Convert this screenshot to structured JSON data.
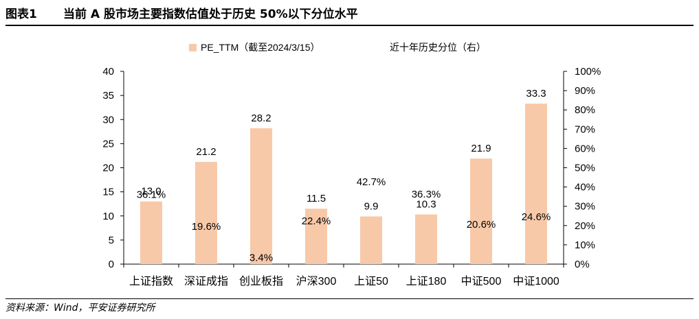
{
  "figure": {
    "label": "图表1",
    "title": "当前 A 股市场主要指数估值处于历史 50%以下分位水平",
    "source": "资料来源：Wind，平安证券研究所"
  },
  "colors": {
    "bar": "#F8C9A8",
    "axis": "#000000"
  },
  "chart_data": {
    "type": "bar",
    "title": "",
    "categories": [
      "上证指数",
      "深证成指",
      "创业板指",
      "沪深300",
      "上证50",
      "上证180",
      "中证500",
      "中证1000"
    ],
    "legend": {
      "position": "top",
      "entries": [
        "PE_TTM（截至2024/3/15）",
        "近十年历史分位（右）"
      ]
    },
    "y_left": {
      "ylim": [
        0,
        40
      ],
      "ticks": [
        0,
        5,
        10,
        15,
        20,
        25,
        30,
        35,
        40
      ]
    },
    "y_right": {
      "ylim": [
        0,
        1
      ],
      "ticks": [
        "0%",
        "10%",
        "20%",
        "30%",
        "40%",
        "50%",
        "60%",
        "70%",
        "80%",
        "90%",
        "100%"
      ]
    },
    "series": [
      {
        "name": "PE_TTM（截至2024/3/15）",
        "axis": "left",
        "kind": "bar",
        "values": [
          13.0,
          21.2,
          28.2,
          11.5,
          9.9,
          10.3,
          21.9,
          33.3
        ],
        "labels": [
          "13.0",
          "21.2",
          "28.2",
          "11.5",
          "9.9",
          "10.3",
          "21.9",
          "33.3"
        ]
      },
      {
        "name": "近十年历史分位（右）",
        "axis": "right",
        "kind": "label",
        "values": [
          0.361,
          0.196,
          0.034,
          0.224,
          0.427,
          0.363,
          0.206,
          0.246
        ],
        "labels": [
          "36.1%",
          "19.6%",
          "3.4%",
          "22.4%",
          "42.7%",
          "36.3%",
          "20.6%",
          "24.6%"
        ]
      }
    ],
    "grid": false
  }
}
